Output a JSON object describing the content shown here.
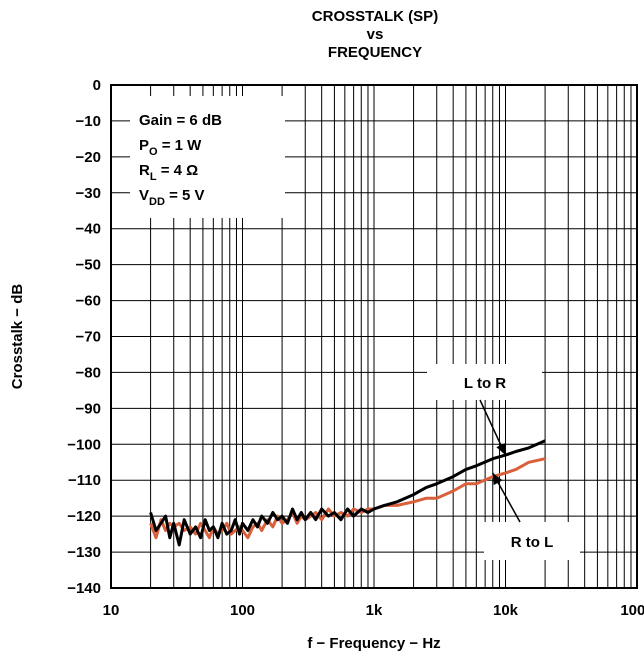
{
  "chart_data": {
    "type": "line",
    "title": [
      "CROSSTALK (SP)",
      "vs",
      "FREQUENCY"
    ],
    "xlabel": "f − Frequency − Hz",
    "ylabel": "Crosstalk − dB",
    "xscale": "log",
    "xlim": [
      10,
      100000
    ],
    "ylim": [
      -140,
      0
    ],
    "grid": true,
    "x_ticks": [
      {
        "value": 10,
        "label": "10"
      },
      {
        "value": 100,
        "label": "100"
      },
      {
        "value": 1000,
        "label": "1k"
      },
      {
        "value": 10000,
        "label": "10k"
      },
      {
        "value": 100000,
        "label": "100k"
      }
    ],
    "y_ticks": [
      {
        "value": 0,
        "label": "0"
      },
      {
        "value": -10,
        "label": "−10"
      },
      {
        "value": -20,
        "label": "−20"
      },
      {
        "value": -30,
        "label": "−30"
      },
      {
        "value": -40,
        "label": "−40"
      },
      {
        "value": -50,
        "label": "−50"
      },
      {
        "value": -60,
        "label": "−60"
      },
      {
        "value": -70,
        "label": "−70"
      },
      {
        "value": -80,
        "label": "−80"
      },
      {
        "value": -90,
        "label": "−90"
      },
      {
        "value": -100,
        "label": "−100"
      },
      {
        "value": -110,
        "label": "−110"
      },
      {
        "value": -120,
        "label": "−120"
      },
      {
        "value": -130,
        "label": "−130"
      },
      {
        "value": -140,
        "label": "−140"
      }
    ],
    "conditions": [
      {
        "main": "Gain = 6 dB",
        "sub": "",
        "rest": ""
      },
      {
        "main": "P",
        "sub": "O",
        "rest": " = 1 W"
      },
      {
        "main": "R",
        "sub": "L",
        "rest": " = 4 Ω"
      },
      {
        "main": "V",
        "sub": "DD",
        "rest": " = 5 V"
      }
    ],
    "series": [
      {
        "name": "L to R",
        "color": "#000000",
        "x": [
          20,
          22,
          24,
          26,
          28,
          30,
          33,
          36,
          40,
          44,
          48,
          52,
          56,
          60,
          65,
          70,
          76,
          82,
          88,
          95,
          100,
          110,
          120,
          130,
          140,
          155,
          170,
          185,
          200,
          220,
          240,
          260,
          280,
          300,
          330,
          360,
          400,
          450,
          500,
          560,
          630,
          700,
          800,
          900,
          1000,
          1200,
          1500,
          2000,
          2500,
          3000,
          4000,
          5000,
          6000,
          8000,
          10000,
          12000,
          15000,
          20000
        ],
        "y": [
          -119,
          -124,
          -122,
          -120,
          -126,
          -122,
          -128,
          -121,
          -125,
          -123,
          -126,
          -121,
          -124,
          -123,
          -126,
          -122,
          -125,
          -124,
          -121,
          -125,
          -122,
          -124,
          -121,
          -123,
          -120,
          -122,
          -119,
          -121,
          -120,
          -122,
          -118,
          -121,
          -119,
          -121,
          -119,
          -121,
          -118,
          -120,
          -119,
          -121,
          -118,
          -120,
          -118,
          -119,
          -118,
          -117,
          -116,
          -114,
          -112,
          -111,
          -109,
          -107,
          -106,
          -104,
          -103,
          -102,
          -101,
          -99
        ]
      },
      {
        "name": "R to L",
        "color": "#d9603b",
        "x": [
          20,
          22,
          24,
          26,
          28,
          30,
          33,
          36,
          40,
          44,
          48,
          52,
          56,
          60,
          65,
          70,
          76,
          82,
          88,
          95,
          100,
          110,
          120,
          130,
          140,
          155,
          170,
          185,
          200,
          220,
          240,
          260,
          280,
          300,
          330,
          360,
          400,
          450,
          500,
          560,
          630,
          700,
          800,
          900,
          1000,
          1200,
          1500,
          2000,
          2500,
          3000,
          4000,
          5000,
          6000,
          8000,
          10000,
          12000,
          15000,
          20000
        ],
        "y": [
          -122,
          -126,
          -121,
          -124,
          -122,
          -123,
          -122,
          -124,
          -123,
          -125,
          -122,
          -124,
          -126,
          -123,
          -125,
          -124,
          -122,
          -125,
          -124,
          -123,
          -124,
          -126,
          -123,
          -122,
          -124,
          -121,
          -123,
          -120,
          -122,
          -121,
          -119,
          -122,
          -120,
          -121,
          -120,
          -119,
          -121,
          -118,
          -120,
          -119,
          -120,
          -118,
          -119,
          -118,
          -118,
          -117,
          -117,
          -116,
          -115,
          -115,
          -113,
          -111,
          -111,
          -109,
          -108,
          -107,
          -105,
          -104
        ]
      }
    ],
    "annotations": [
      {
        "text": "L to R",
        "points_to": {
          "x": 10000,
          "y": -103
        }
      },
      {
        "text": "R to L",
        "points_to": {
          "x": 8000,
          "y": -108
        }
      }
    ]
  }
}
